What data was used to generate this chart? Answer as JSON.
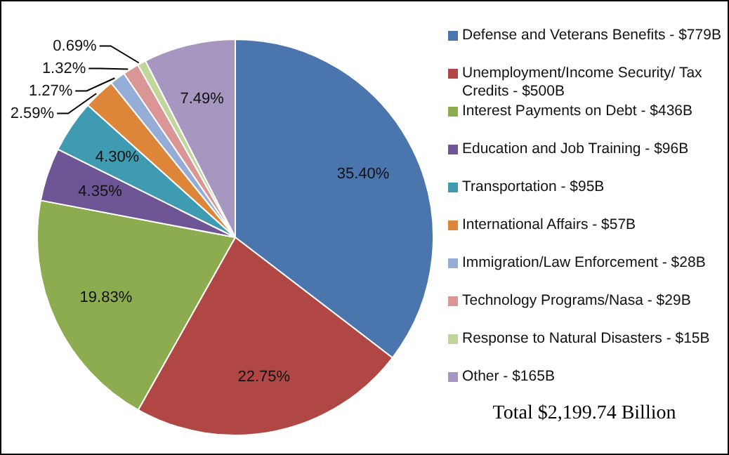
{
  "chart_data": {
    "type": "pie",
    "categories": [
      "Defense and Veterans Benefits - $779B",
      "Unemployment/Income Security/ Tax Credits - $500B",
      "Interest Payments on Debt - $436B",
      "Education and Job Training - $96B",
      "Transportation - $95B",
      "International Affairs - $57B",
      "Immigration/Law Enforcement - $28B",
      "Technology Programs/Nasa - $29B",
      "Response to Natural Disasters - $15B",
      "Other - $165B"
    ],
    "values": [
      35.4,
      22.75,
      19.83,
      4.35,
      4.3,
      2.59,
      1.27,
      1.32,
      0.69,
      7.49
    ],
    "value_labels": [
      "35.40%",
      "22.75%",
      "19.83%",
      "4.35%",
      "4.30%",
      "2.59%",
      "1.27%",
      "1.32%",
      "0.69%",
      "7.49%"
    ],
    "colors": [
      "#4a75ad",
      "#b04744",
      "#8dab4f",
      "#6e5595",
      "#3f9bb1",
      "#dd8539",
      "#95add6",
      "#d99694",
      "#c0d69b",
      "#a597bf"
    ],
    "legend": "right",
    "annotations": [
      "Total $2,199.74 Billion"
    ]
  }
}
